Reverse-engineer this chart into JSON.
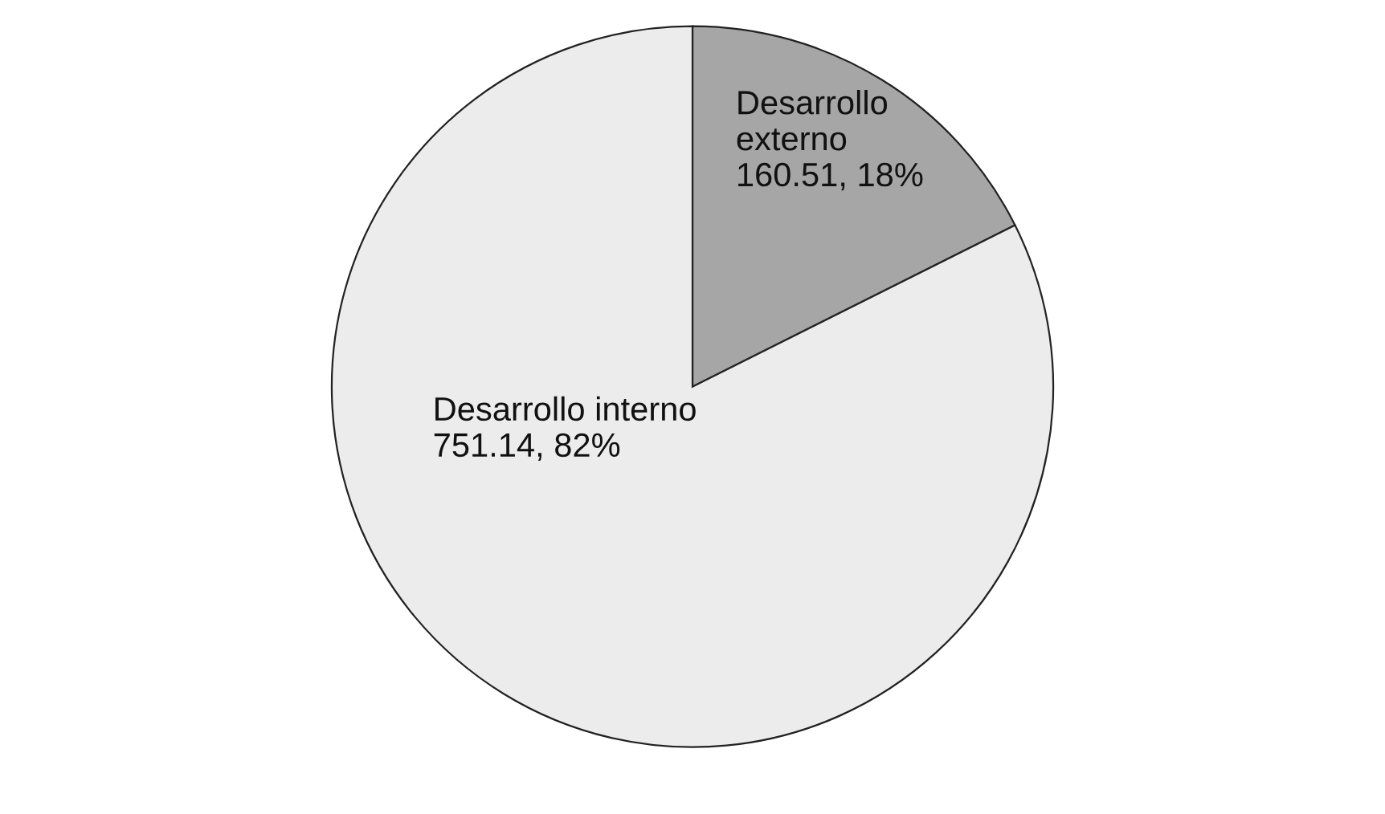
{
  "chart_data": {
    "type": "pie",
    "categories": [
      "Desarrollo externo",
      "Desarrollo interno"
    ],
    "values": [
      160.51,
      751.14
    ],
    "colors": [
      "#a6a6a6",
      "#ececec"
    ],
    "value_labels": [
      "160.51, 18%",
      "751.14, 82%"
    ]
  }
}
